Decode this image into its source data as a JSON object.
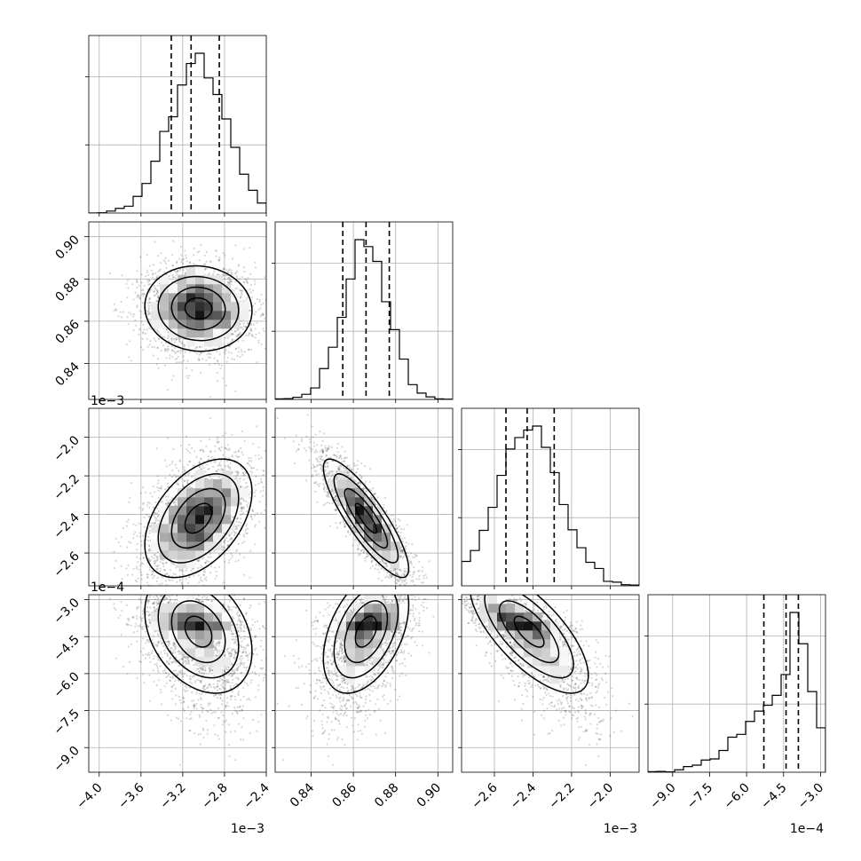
{
  "chart_data": {
    "type": "corner",
    "params": [
      {
        "index": 0,
        "ticks": [
          -4.0,
          -3.6,
          -3.2,
          -2.8,
          -2.4
        ],
        "tick_labels": [
          "−4.0",
          "−3.6",
          "−3.2",
          "−2.8",
          "−2.4"
        ],
        "range": [
          -4.1,
          -2.4
        ],
        "offset_label": "1e−3",
        "mean": -3.05,
        "sd": 0.27,
        "quantiles": [
          -3.31,
          -3.12,
          -2.85
        ]
      },
      {
        "index": 1,
        "ticks": [
          0.84,
          0.86,
          0.88,
          0.9
        ],
        "tick_labels": [
          "0.84",
          "0.86",
          "0.88",
          "0.90"
        ],
        "range": [
          0.823,
          0.907
        ],
        "offset_label": "",
        "mean": 0.866,
        "sd": 0.0105,
        "quantiles": [
          0.855,
          0.866,
          0.877
        ]
      },
      {
        "index": 2,
        "ticks": [
          -2.6,
          -2.4,
          -2.2,
          -2.0
        ],
        "tick_labels": [
          "−2.6",
          "−2.4",
          "−2.2",
          "−2.0"
        ],
        "range": [
          -2.77,
          -1.85
        ],
        "offset_label": "1e−3",
        "mean": -2.42,
        "sd": 0.16,
        "quantiles": [
          -2.54,
          -2.43,
          -2.29
        ]
      },
      {
        "index": 3,
        "ticks": [
          -9.0,
          -7.5,
          -6.0,
          -4.5,
          -3.0
        ],
        "tick_labels": [
          "−9.0",
          "−7.5",
          "−6.0",
          "−4.5",
          "−3.0"
        ],
        "range": [
          -10.0,
          -2.8
        ],
        "offset_label": "1e−4",
        "mean": -4.3,
        "sd": 0.8,
        "quantiles": [
          -5.3,
          -4.4,
          -3.9
        ]
      }
    ],
    "correlations": {
      "1_0": -0.05,
      "2_0": 0.45,
      "2_1": -0.85,
      "3_0": -0.35,
      "3_1": 0.45,
      "3_2": -0.75
    },
    "quantile_levels": [
      0.16,
      0.5,
      0.84
    ],
    "grid": true,
    "xlabel_offsets": [
      "1e−3",
      "",
      "1e−3",
      "1e−4"
    ]
  }
}
